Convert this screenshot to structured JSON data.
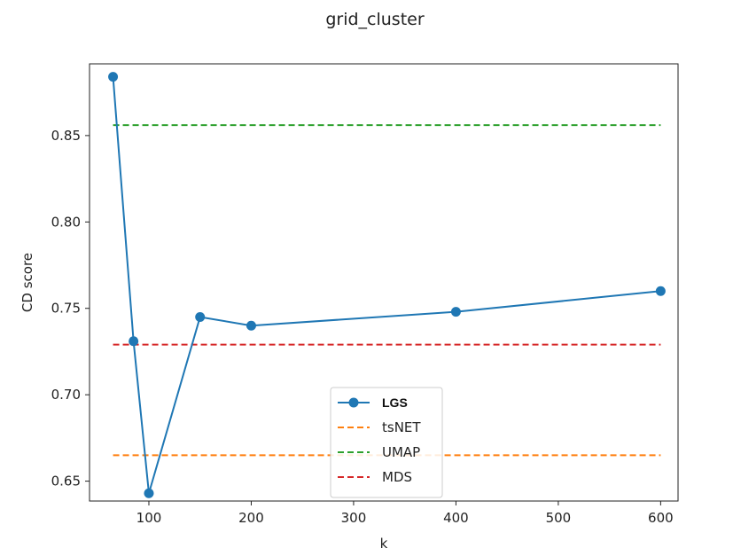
{
  "chart_data": {
    "type": "line",
    "title": "grid_cluster",
    "xlabel": "k",
    "ylabel": "CD score",
    "xlim": [
      42,
      617
    ],
    "ylim": [
      0.6385,
      0.8915
    ],
    "xticks": [
      100,
      200,
      300,
      400,
      500,
      600
    ],
    "xtick_labels": [
      "100",
      "200",
      "300",
      "400",
      "500",
      "600"
    ],
    "yticks": [
      0.65,
      0.7,
      0.75,
      0.8,
      0.85
    ],
    "ytick_labels": [
      "0.65",
      "0.70",
      "0.75",
      "0.80",
      "0.85"
    ],
    "grid": false,
    "legend_position": "lower center",
    "series": [
      {
        "name": "LGS",
        "style": "line-marker",
        "color": "#1f77b4",
        "x": [
          65,
          85,
          100,
          150,
          200,
          400,
          600
        ],
        "y": [
          0.884,
          0.731,
          0.643,
          0.745,
          0.74,
          0.748,
          0.76
        ]
      },
      {
        "name": "tsNET",
        "style": "dashed",
        "color": "#ff7f0e",
        "x": [
          65,
          600
        ],
        "y": [
          0.665,
          0.665
        ]
      },
      {
        "name": "UMAP",
        "style": "dashed",
        "color": "#2ca02c",
        "x": [
          65,
          600
        ],
        "y": [
          0.856,
          0.856
        ]
      },
      {
        "name": "MDS",
        "style": "dashed",
        "color": "#d62728",
        "x": [
          65,
          600
        ],
        "y": [
          0.729,
          0.729
        ]
      }
    ]
  }
}
